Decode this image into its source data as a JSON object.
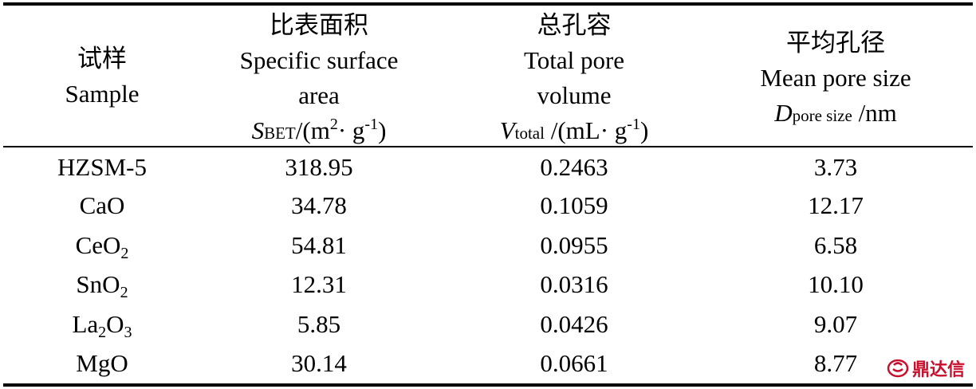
{
  "table": {
    "header": {
      "sample": {
        "zh": "试样",
        "en": "Sample"
      },
      "surface": {
        "zh": "比表面积",
        "en1": "Specific surface",
        "en2": "area",
        "sym": "S",
        "sym_sub": "BET",
        "unit_pre": "/(m",
        "unit_sup": "2",
        "unit_mid": "· g",
        "unit_sup2": "-1",
        "unit_post": ")"
      },
      "volume": {
        "zh": "总孔容",
        "en1": "Total pore",
        "en2": "volume",
        "sym": "V",
        "sym_sub": "total",
        "unit_pre": " /(mL· g",
        "unit_sup": "-1",
        "unit_post": ")"
      },
      "pore": {
        "zh": "平均孔径",
        "en1": "Mean pore size",
        "sym": "D",
        "sym_sub": "pore size",
        "unit": " /nm"
      }
    },
    "rows": [
      {
        "name": "HZSM-5",
        "name_sub": "",
        "name_mid": "",
        "name_sub2": "",
        "surface": "318.95",
        "volume": "0.2463",
        "pore": "3.73"
      },
      {
        "name": "CaO",
        "name_sub": "",
        "name_mid": "",
        "name_sub2": "",
        "surface": "34.78",
        "volume": "0.1059",
        "pore": "12.17"
      },
      {
        "name": "CeO",
        "name_sub": "2",
        "name_mid": "",
        "name_sub2": "",
        "surface": "54.81",
        "volume": "0.0955",
        "pore": "6.58"
      },
      {
        "name": "SnO",
        "name_sub": "2",
        "name_mid": "",
        "name_sub2": "",
        "surface": "12.31",
        "volume": "0.0316",
        "pore": "10.10"
      },
      {
        "name": "La",
        "name_sub": "2",
        "name_mid": "O",
        "name_sub2": "3",
        "surface": "5.85",
        "volume": "0.0426",
        "pore": "9.07"
      },
      {
        "name": "MgO",
        "name_sub": "",
        "name_mid": "",
        "name_sub2": "",
        "surface": "30.14",
        "volume": "0.0661",
        "pore": "8.77"
      }
    ]
  },
  "watermark": {
    "text": "鼎达信",
    "icon": "brand-logo-icon",
    "color": "#c8102e"
  }
}
